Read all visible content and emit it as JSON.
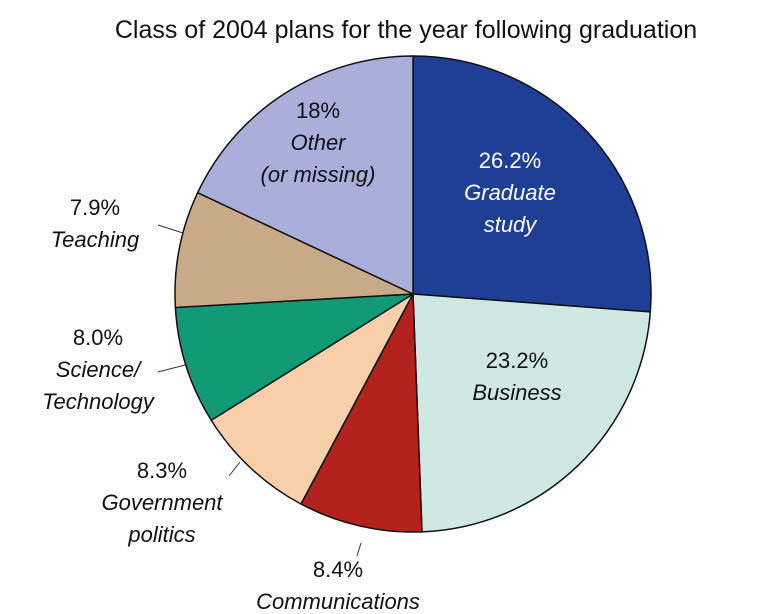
{
  "chart_data": {
    "type": "pie",
    "title": "Class of 2004 plans for the year following graduation",
    "slices": [
      {
        "category_lines": [
          "Graduate",
          "study"
        ],
        "label": "26.2%",
        "value": 26.2,
        "color": "#1f3f95"
      },
      {
        "category_lines": [
          "Business"
        ],
        "label": "23.2%",
        "value": 23.2,
        "color": "#cfe8e1"
      },
      {
        "category_lines": [
          "Communications"
        ],
        "label": "8.4%",
        "value": 8.4,
        "color": "#b3221c"
      },
      {
        "category_lines": [
          "Government",
          "politics"
        ],
        "label": "8.3%",
        "value": 8.3,
        "color": "#f9cfaa"
      },
      {
        "category_lines": [
          "Science/",
          "Technology"
        ],
        "label": "8.0%",
        "value": 8.0,
        "color": "#119a75"
      },
      {
        "category_lines": [
          "Teaching"
        ],
        "label": "7.9%",
        "value": 7.9,
        "color": "#c8aa88"
      },
      {
        "category_lines": [
          "Other",
          "(or missing)"
        ],
        "label": "18%",
        "value": 18,
        "color": "#a9aedb"
      }
    ]
  }
}
